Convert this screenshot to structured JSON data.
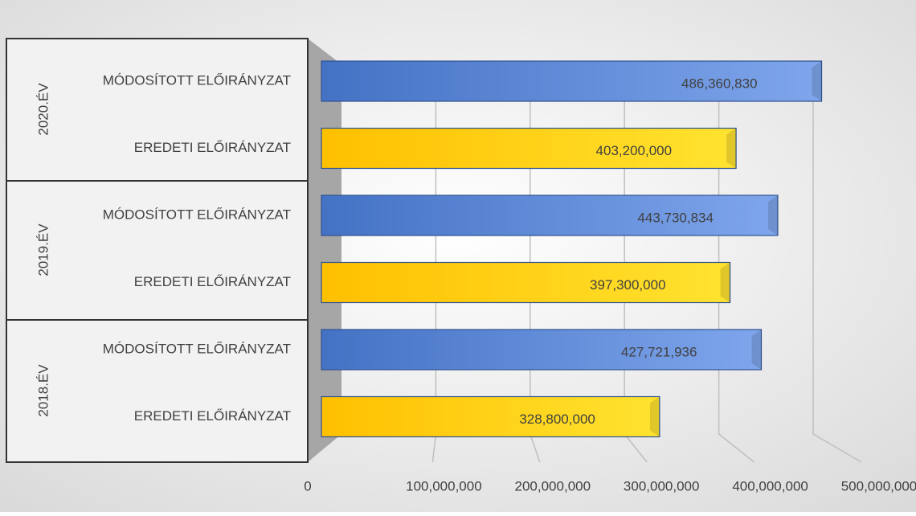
{
  "chart_data": {
    "type": "bar",
    "orientation": "horizontal",
    "groups": [
      {
        "name": "2020.ÉV",
        "categories": [
          "MÓDOSÍTOTT ELŐIRÁNYZAT",
          "EREDETI ELŐIRÁNYZAT"
        ],
        "values": [
          486360830,
          403200000
        ],
        "value_labels": [
          "486,360,830",
          "403,200,000"
        ],
        "colors": [
          "#4472c4",
          "#ffc000"
        ]
      },
      {
        "name": "2019.ÉV",
        "categories": [
          "MÓDOSÍTOTT ELŐIRÁNYZAT",
          "EREDETI ELŐIRÁNYZAT"
        ],
        "values": [
          443730834,
          397300000
        ],
        "value_labels": [
          "443,730,834",
          "397,300,000"
        ],
        "colors": [
          "#4472c4",
          "#ffc000"
        ]
      },
      {
        "name": "2018.ÉV",
        "categories": [
          "MÓDOSÍTOTT ELŐIRÁNYZAT",
          "EREDETI ELŐIRÁNYZAT"
        ],
        "values": [
          427721936,
          328800000
        ],
        "value_labels": [
          "427,721,936",
          "328,800,000"
        ],
        "colors": [
          "#4472c4",
          "#ffc000"
        ]
      }
    ],
    "xlim": [
      0,
      500000000
    ],
    "xticks": [
      0,
      {
        "value": 100000000,
        "label": "100,000,000"
      },
      {
        "value": 200000000,
        "label": "200,000,000"
      },
      {
        "value": 300000000,
        "label": "300,000,000"
      },
      {
        "value": 400000000,
        "label": "400,000,000"
      },
      {
        "value": 500000000,
        "label": "500,000,000"
      }
    ],
    "grid": true
  }
}
